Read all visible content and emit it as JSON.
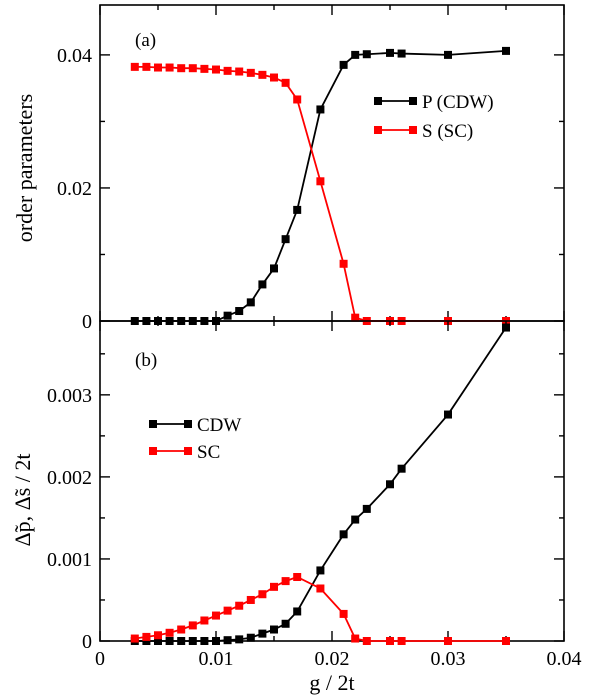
{
  "chart_data": [
    {
      "type": "line",
      "panel_label": "(a)",
      "xlabel": "",
      "ylabel": "order parameters",
      "xlim": [
        0,
        0.04
      ],
      "ylim": [
        0,
        0.0475
      ],
      "x_ticks": [],
      "y_ticks": [
        "0",
        "0.02",
        "0.04"
      ],
      "y_tick_values": [
        0,
        0.02,
        0.04
      ],
      "legend_position": "upper-right",
      "series": [
        {
          "name": "P (CDW)",
          "color": "#000000",
          "marker": "square",
          "x": [
            0.003,
            0.004,
            0.005,
            0.006,
            0.007,
            0.008,
            0.009,
            0.01,
            0.011,
            0.012,
            0.013,
            0.014,
            0.015,
            0.016,
            0.017,
            0.019,
            0.021,
            0.022,
            0.023,
            0.025,
            0.026,
            0.03,
            0.035
          ],
          "y": [
            0.0,
            0.0,
            0.0,
            0.0,
            0.0,
            0.0,
            0.0,
            0.0,
            0.0008,
            0.0015,
            0.0028,
            0.0055,
            0.0079,
            0.0123,
            0.0167,
            0.0318,
            0.0385,
            0.04,
            0.0401,
            0.0403,
            0.0402,
            0.04,
            0.0406
          ]
        },
        {
          "name": "S (SC)",
          "color": "#ff0000",
          "marker": "square",
          "x": [
            0.003,
            0.004,
            0.005,
            0.006,
            0.007,
            0.008,
            0.009,
            0.01,
            0.011,
            0.012,
            0.013,
            0.014,
            0.015,
            0.016,
            0.017,
            0.019,
            0.021,
            0.022,
            0.023,
            0.025,
            0.026,
            0.03,
            0.035
          ],
          "y": [
            0.0382,
            0.0382,
            0.0381,
            0.0381,
            0.038,
            0.038,
            0.0379,
            0.0378,
            0.0376,
            0.0375,
            0.0373,
            0.037,
            0.0366,
            0.0358,
            0.0333,
            0.021,
            0.0086,
            0.0005,
            0.0,
            0.0,
            0.0,
            0.0,
            0.0
          ]
        }
      ]
    },
    {
      "type": "line",
      "panel_label": "(b)",
      "xlabel": "g / 2t",
      "ylabel": "Δ̃p, Δ̃s / 2t",
      "xlim": [
        0,
        0.04
      ],
      "ylim": [
        0,
        0.0039
      ],
      "x_ticks": [
        "0",
        "0.01",
        "0.02",
        "0.03",
        "0.04"
      ],
      "x_tick_values": [
        0,
        0.01,
        0.02,
        0.03,
        0.04
      ],
      "y_ticks": [
        "0",
        "0.001",
        "0.002",
        "0.003"
      ],
      "y_tick_values": [
        0,
        0.001,
        0.002,
        0.003
      ],
      "legend_position": "upper-left",
      "series": [
        {
          "name": "CDW",
          "color": "#000000",
          "marker": "square",
          "x": [
            0.003,
            0.004,
            0.005,
            0.006,
            0.007,
            0.008,
            0.009,
            0.01,
            0.011,
            0.012,
            0.013,
            0.014,
            0.015,
            0.016,
            0.017,
            0.019,
            0.021,
            0.022,
            0.023,
            0.025,
            0.026,
            0.03,
            0.035
          ],
          "y": [
            0.0,
            0.0,
            0.0,
            0.0,
            0.0,
            0.0,
            0.0,
            0.0,
            1e-05,
            2e-05,
            4e-05,
            9e-05,
            0.00014,
            0.00021,
            0.00036,
            0.00086,
            0.0013,
            0.00148,
            0.00161,
            0.00191,
            0.0021,
            0.00276,
            0.00382
          ]
        },
        {
          "name": "SC",
          "color": "#ff0000",
          "marker": "square",
          "x": [
            0.003,
            0.004,
            0.005,
            0.006,
            0.007,
            0.008,
            0.009,
            0.01,
            0.011,
            0.012,
            0.013,
            0.014,
            0.015,
            0.016,
            0.017,
            0.019,
            0.021,
            0.022,
            0.023,
            0.025,
            0.026,
            0.03,
            0.035
          ],
          "y": [
            3e-05,
            5e-05,
            7e-05,
            0.0001,
            0.00014,
            0.00019,
            0.00025,
            0.00031,
            0.00037,
            0.00043,
            0.0005,
            0.00057,
            0.00066,
            0.00073,
            0.00078,
            0.00064,
            0.00033,
            3e-05,
            0.0,
            0.0,
            0.0,
            0.0,
            0.0
          ]
        }
      ]
    }
  ]
}
